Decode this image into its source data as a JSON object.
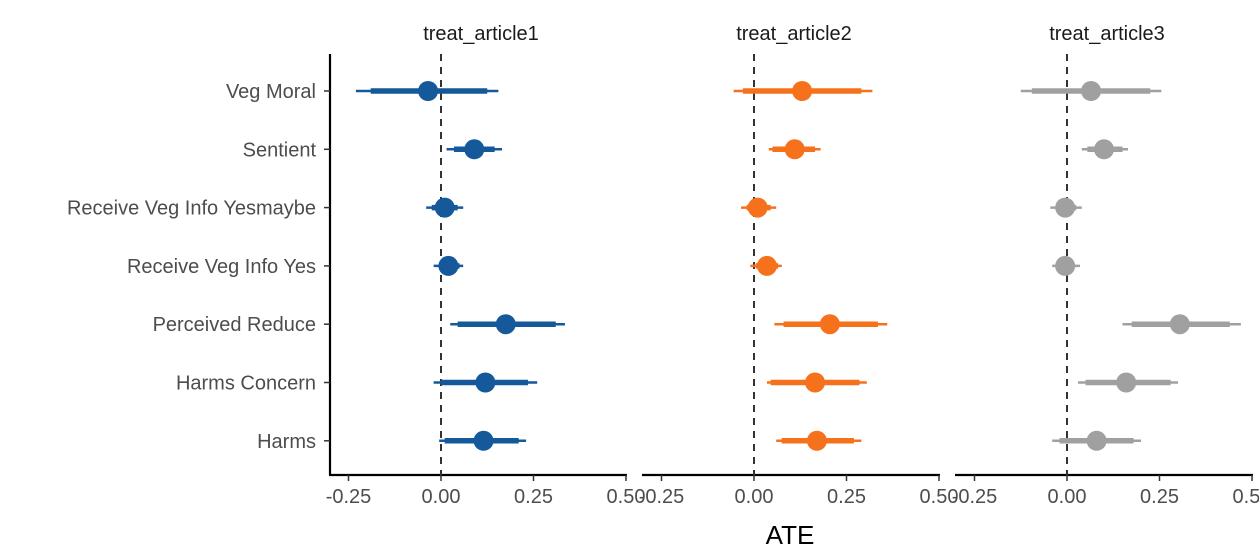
{
  "chart_data": {
    "type": "forest",
    "title": "",
    "xlabel": "ATE",
    "ylabel": "",
    "xlim": [
      -0.3,
      0.5
    ],
    "x_ticks": [
      -0.25,
      0.0,
      0.25,
      0.5
    ],
    "x_tick_labels": [
      "-0.25",
      "0.00",
      "0.25",
      "0.50"
    ],
    "reference_line": 0,
    "grid": false,
    "legend": "none",
    "categories": [
      "Veg Moral",
      "Sentient",
      "Receive Veg Info Yesmaybe",
      "Receive Veg Info Yes",
      "Perceived Reduce",
      "Harms Concern",
      "Harms"
    ],
    "panels": [
      {
        "name": "treat_article1",
        "color": "#15599a",
        "estimates": [
          -0.035,
          0.09,
          0.01,
          0.02,
          0.175,
          0.12,
          0.115
        ],
        "ci_inner": [
          [
            -0.19,
            0.125
          ],
          [
            0.035,
            0.145
          ],
          [
            -0.025,
            0.045
          ],
          [
            -0.005,
            0.05
          ],
          [
            0.045,
            0.31
          ],
          [
            0.0,
            0.235
          ],
          [
            0.01,
            0.21
          ]
        ],
        "ci_outer": [
          [
            -0.23,
            0.155
          ],
          [
            0.015,
            0.165
          ],
          [
            -0.04,
            0.06
          ],
          [
            -0.02,
            0.06
          ],
          [
            0.025,
            0.335
          ],
          [
            -0.02,
            0.26
          ],
          [
            -0.005,
            0.23
          ]
        ]
      },
      {
        "name": "treat_article2",
        "color": "#f6711b",
        "estimates": [
          0.13,
          0.11,
          0.01,
          0.035,
          0.205,
          0.165,
          0.17
        ],
        "ci_inner": [
          [
            -0.03,
            0.29
          ],
          [
            0.05,
            0.165
          ],
          [
            -0.02,
            0.045
          ],
          [
            0.005,
            0.065
          ],
          [
            0.08,
            0.335
          ],
          [
            0.045,
            0.285
          ],
          [
            0.075,
            0.27
          ]
        ],
        "ci_outer": [
          [
            -0.055,
            0.32
          ],
          [
            0.04,
            0.18
          ],
          [
            -0.035,
            0.06
          ],
          [
            -0.01,
            0.075
          ],
          [
            0.055,
            0.36
          ],
          [
            0.035,
            0.305
          ],
          [
            0.06,
            0.29
          ]
        ]
      },
      {
        "name": "treat_article3",
        "color": "#a0a0a0",
        "estimates": [
          0.065,
          0.1,
          -0.005,
          -0.005,
          0.305,
          0.16,
          0.08
        ],
        "ci_inner": [
          [
            -0.095,
            0.225
          ],
          [
            0.055,
            0.15
          ],
          [
            -0.03,
            0.025
          ],
          [
            -0.03,
            0.02
          ],
          [
            0.175,
            0.44
          ],
          [
            0.05,
            0.28
          ],
          [
            -0.02,
            0.18
          ]
        ],
        "ci_outer": [
          [
            -0.125,
            0.255
          ],
          [
            0.04,
            0.165
          ],
          [
            -0.045,
            0.04
          ],
          [
            -0.04,
            0.035
          ],
          [
            0.15,
            0.47
          ],
          [
            0.03,
            0.3
          ],
          [
            -0.04,
            0.2
          ]
        ]
      }
    ]
  }
}
